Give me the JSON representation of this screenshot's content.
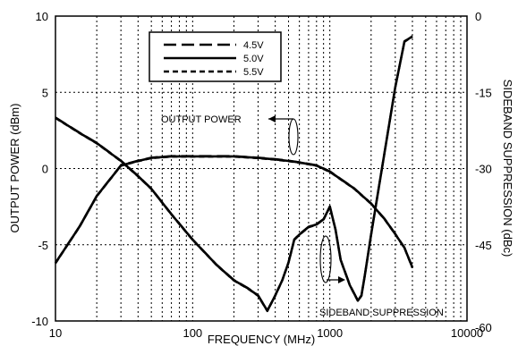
{
  "chart_data": {
    "type": "line",
    "title": "",
    "xlabel": "FREQUENCY (MHz)",
    "ylabel_left": "OUTPUT POWER (dBm)",
    "ylabel_right": "SIDEBAND SUPPRESSION (dBc)",
    "x_scale": "log",
    "xlim": [
      10,
      10000
    ],
    "ylim_left": [
      -10,
      10
    ],
    "ylim_right": [
      -60,
      0
    ],
    "x_ticks": [
      10,
      100,
      1000,
      10000
    ],
    "x_tick_labels": [
      "10",
      "100",
      "1000",
      "10000"
    ],
    "y_left_ticks": [
      -10,
      -5,
      0,
      5,
      10
    ],
    "y_left_tick_labels": [
      "-10",
      "-5",
      "0",
      "5",
      "10"
    ],
    "y_right_ticks": [
      -60,
      -45,
      -30,
      -15,
      0
    ],
    "y_right_tick_labels": [
      "-60",
      "-45",
      "-30",
      "-15",
      "0"
    ],
    "grid": true,
    "legend": {
      "placement": "top-center",
      "entries": [
        {
          "label": "4.5V",
          "style": "long-dash"
        },
        {
          "label": "5.0V",
          "style": "solid"
        },
        {
          "label": "5.5V",
          "style": "short-dash"
        }
      ]
    },
    "annotations": [
      {
        "text": "OUTPUT POWER",
        "points_to": "left",
        "axis": "left"
      },
      {
        "text": "SIDEBAND SUPPRESSION",
        "points_to": "right",
        "axis": "right"
      }
    ],
    "series": [
      {
        "name": "OUTPUT POWER 5.0V",
        "axis": "left",
        "style": "solid",
        "x": [
          10,
          15,
          20,
          30,
          40,
          50,
          70,
          100,
          150,
          200,
          300,
          400,
          500,
          600,
          800,
          1000,
          1200,
          1500,
          2000,
          2500,
          3000,
          3500,
          4000
        ],
        "y": [
          -6.2,
          -3.8,
          -1.8,
          0.2,
          0.5,
          0.7,
          0.8,
          0.8,
          0.8,
          0.8,
          0.7,
          0.6,
          0.5,
          0.4,
          0.2,
          -0.2,
          -0.7,
          -1.3,
          -2.3,
          -3.3,
          -4.3,
          -5.2,
          -6.5
        ]
      },
      {
        "name": "SIDEBAND SUPPRESSION 5.0V",
        "axis": "right",
        "style": "solid",
        "x": [
          10,
          15,
          20,
          30,
          40,
          50,
          70,
          100,
          150,
          200,
          250,
          300,
          350,
          400,
          450,
          500,
          550,
          600,
          700,
          800,
          900,
          1000,
          1100,
          1200,
          1400,
          1600,
          1700,
          1800,
          2000,
          2500,
          3000,
          3500,
          4000
        ],
        "y": [
          -20,
          -23,
          -25,
          -28.5,
          -31.5,
          -34,
          -39,
          -44,
          -49,
          -52,
          -53.5,
          -55,
          -58,
          -55,
          -52,
          -48.5,
          -44,
          -43,
          -41.5,
          -41,
          -40,
          -37.5,
          -42,
          -48,
          -53,
          -56,
          -55,
          -51,
          -43,
          -27,
          -14,
          -5,
          -4
        ]
      }
    ]
  }
}
